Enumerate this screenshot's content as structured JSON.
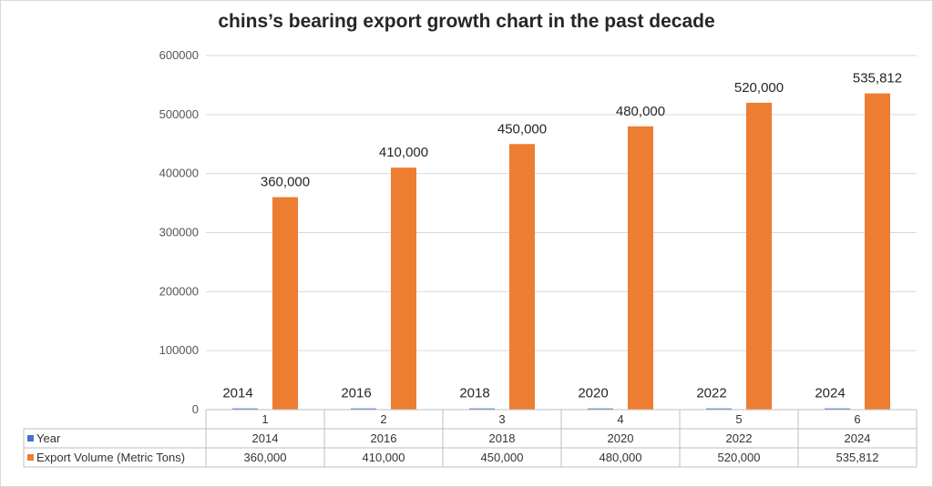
{
  "chart_data": {
    "type": "bar",
    "title": "chins’s bearing export growth chart in the past decade",
    "categories": [
      "1",
      "2",
      "3",
      "4",
      "5",
      "6"
    ],
    "series": [
      {
        "name": "Year",
        "values": [
          2014,
          2016,
          2018,
          2020,
          2022,
          2024
        ],
        "labels": [
          "2014",
          "2016",
          "2018",
          "2020",
          "2022",
          "2024"
        ],
        "color": "#4472C4"
      },
      {
        "name": "Export Volume (Metric Tons)",
        "values": [
          360000,
          410000,
          450000,
          480000,
          520000,
          535812
        ],
        "labels": [
          "360,000",
          "410,000",
          "450,000",
          "480,000",
          "520,000",
          "535,812"
        ],
        "color": "#ED7D31"
      }
    ],
    "ylim": [
      0,
      600000
    ],
    "yticks": [
      "0",
      "100000",
      "200000",
      "300000",
      "400000",
      "500000",
      "600000"
    ],
    "grid": true,
    "legend": "data-table-bottom",
    "xlabel": "",
    "ylabel": ""
  }
}
